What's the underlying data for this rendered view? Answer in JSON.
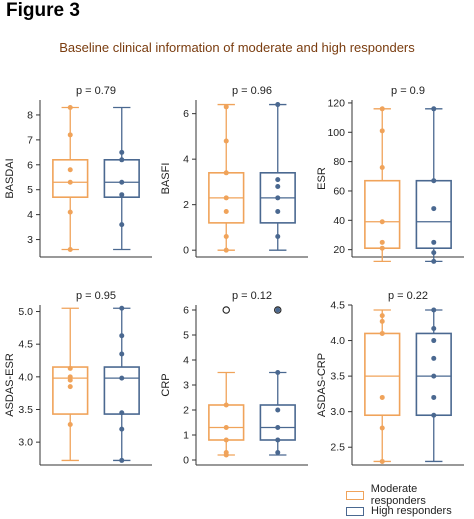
{
  "figure_label": "Figure 3",
  "title": "Baseline clinical information of moderate and high responders",
  "colors": {
    "moderate": "#f0a35a",
    "high": "#4a6890"
  },
  "legend": [
    {
      "label": "Moderate responders",
      "color": "#f0a35a"
    },
    {
      "label": "High responders",
      "color": "#4a6890"
    }
  ],
  "chart_data": [
    {
      "type": "box",
      "ylabel": "BASDAI",
      "pvalue": "p = 0.79",
      "ylim": [
        2.3,
        8.6
      ],
      "yticks": [
        3,
        4,
        5,
        6,
        7,
        8
      ],
      "groups": [
        {
          "name": "Moderate responders",
          "whisker_low": 2.6,
          "q1": 4.7,
          "median": 5.3,
          "q3": 6.2,
          "whisker_high": 8.3,
          "points": [
            2.6,
            4.1,
            5.3,
            5.8,
            7.2,
            8.3
          ],
          "outliers": []
        },
        {
          "name": "High responders",
          "whisker_low": 2.6,
          "q1": 4.7,
          "median": 5.3,
          "q3": 6.2,
          "whisker_high": 8.3,
          "points": [
            3.6,
            4.8,
            5.3,
            6.2,
            6.5
          ],
          "outliers": []
        }
      ]
    },
    {
      "type": "box",
      "ylabel": "BASFI",
      "pvalue": "p = 0.96",
      "ylim": [
        -0.3,
        6.6
      ],
      "yticks": [
        0,
        2,
        4,
        6
      ],
      "groups": [
        {
          "name": "Moderate responders",
          "whisker_low": 0,
          "q1": 1.2,
          "median": 2.3,
          "q3": 3.4,
          "whisker_high": 6.4,
          "points": [
            0,
            0.6,
            1.7,
            2.3,
            3.4,
            4.8,
            6.3
          ],
          "outliers": []
        },
        {
          "name": "High responders",
          "whisker_low": 0,
          "q1": 1.2,
          "median": 2.3,
          "q3": 3.4,
          "whisker_high": 6.4,
          "points": [
            0.6,
            1.7,
            2.3,
            2.8,
            3.1,
            6.4
          ],
          "outliers": []
        }
      ]
    },
    {
      "type": "box",
      "ylabel": "ESR",
      "pvalue": "p = 0.9",
      "ylim": [
        15,
        122
      ],
      "yticks": [
        20,
        40,
        60,
        80,
        100,
        120
      ],
      "groups": [
        {
          "name": "Moderate responders",
          "whisker_low": 12,
          "q1": 21,
          "median": 39,
          "q3": 67,
          "whisker_high": 116,
          "points": [
            21,
            25,
            39,
            76,
            101,
            116
          ],
          "outliers": []
        },
        {
          "name": "High responders",
          "whisker_low": 12,
          "q1": 21,
          "median": 39,
          "q3": 67,
          "whisker_high": 116,
          "points": [
            12,
            18,
            25,
            48,
            67,
            116
          ],
          "outliers": []
        }
      ]
    },
    {
      "type": "box",
      "ylabel": "ASDAS-ESR",
      "pvalue": "p = 0.95",
      "ylim": [
        2.65,
        5.1
      ],
      "yticks": [
        3.0,
        3.5,
        4.0,
        4.5,
        5.0
      ],
      "tick_decimals": 1,
      "groups": [
        {
          "name": "Moderate responders",
          "whisker_low": 2.72,
          "q1": 3.43,
          "median": 3.98,
          "q3": 4.15,
          "whisker_high": 5.05,
          "points": [
            3.27,
            3.85,
            3.95,
            4.0,
            4.13
          ],
          "outliers": []
        },
        {
          "name": "High responders",
          "whisker_low": 2.72,
          "q1": 3.43,
          "median": 3.98,
          "q3": 4.15,
          "whisker_high": 5.05,
          "points": [
            2.72,
            3.2,
            3.45,
            3.98,
            4.35,
            4.63,
            5.05
          ],
          "outliers": []
        }
      ]
    },
    {
      "type": "box",
      "ylabel": "CRP",
      "pvalue": "p = 0.12",
      "ylim": [
        -0.2,
        6.2
      ],
      "yticks": [
        0,
        1,
        2,
        3,
        4,
        5,
        6
      ],
      "groups": [
        {
          "name": "Moderate responders",
          "whisker_low": 0.2,
          "q1": 0.8,
          "median": 1.3,
          "q3": 2.2,
          "whisker_high": 3.5,
          "points": [
            0.2,
            0.3,
            0.8,
            1.3,
            2.2
          ],
          "outliers": [
            6.0
          ]
        },
        {
          "name": "High responders",
          "whisker_low": 0.2,
          "q1": 0.8,
          "median": 1.3,
          "q3": 2.2,
          "whisker_high": 3.5,
          "points": [
            0.3,
            0.8,
            1.3,
            2.0,
            3.5,
            6.0
          ],
          "outliers": [
            6.0
          ]
        }
      ]
    },
    {
      "type": "box",
      "ylabel": "ASDAS-CRP",
      "pvalue": "p = 0.22",
      "ylim": [
        2.25,
        4.5
      ],
      "yticks": [
        2.5,
        3.0,
        3.5,
        4.0,
        4.5
      ],
      "tick_decimals": 1,
      "groups": [
        {
          "name": "Moderate responders",
          "whisker_low": 2.3,
          "q1": 2.95,
          "median": 3.5,
          "q3": 4.1,
          "whisker_high": 4.43,
          "points": [
            2.3,
            2.77,
            3.2,
            4.1,
            4.27,
            4.35
          ],
          "outliers": []
        },
        {
          "name": "High responders",
          "whisker_low": 2.3,
          "q1": 2.95,
          "median": 3.5,
          "q3": 4.1,
          "whisker_high": 4.43,
          "points": [
            2.95,
            3.2,
            3.5,
            3.75,
            4.0,
            4.17,
            4.43
          ],
          "outliers": []
        }
      ]
    }
  ]
}
